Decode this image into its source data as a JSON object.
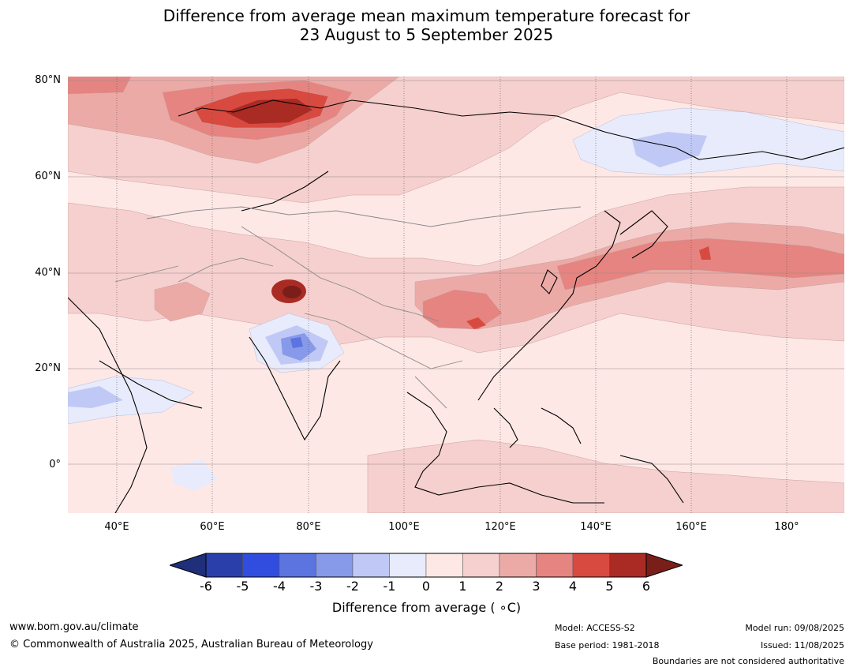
{
  "title_line1": "Difference from average mean maximum temperature forecast for",
  "title_line2": "23 August to 5 September 2025",
  "lat_labels": [
    "80°N",
    "60°N",
    "40°N",
    "20°N",
    "0°"
  ],
  "lon_labels": [
    "40°E",
    "60°E",
    "80°E",
    "100°E",
    "120°E",
    "140°E",
    "160°E",
    "180°"
  ],
  "colorbar": {
    "ticks": [
      "-6",
      "-5",
      "-4",
      "-3",
      "-2",
      "-1",
      "0",
      "1",
      "2",
      "3",
      "4",
      "5",
      "6"
    ],
    "colors": [
      "#1f2f7a",
      "#2a3faa",
      "#304ddf",
      "#5b74e0",
      "#8799e9",
      "#c0c9f5",
      "#e8ebfb",
      "#fde8e6",
      "#f5d0ce",
      "#ecaaa6",
      "#e58480",
      "#d84a40",
      "#aa2a24",
      "#7a1e1a"
    ],
    "label": "Difference from average ( ∘C)"
  },
  "footer": {
    "website": "www.bom.gov.au/climate",
    "copyright": "© Commonwealth of Australia 2025, Australian Bureau of Meteorology",
    "model": "Model: ACCESS-S2",
    "base_period": "Base period: 1981-2018",
    "model_run": "Model run: 09/08/2025",
    "issued": "Issued: 11/08/2025",
    "disclaimer": "Boundaries are not considered authoritative"
  }
}
